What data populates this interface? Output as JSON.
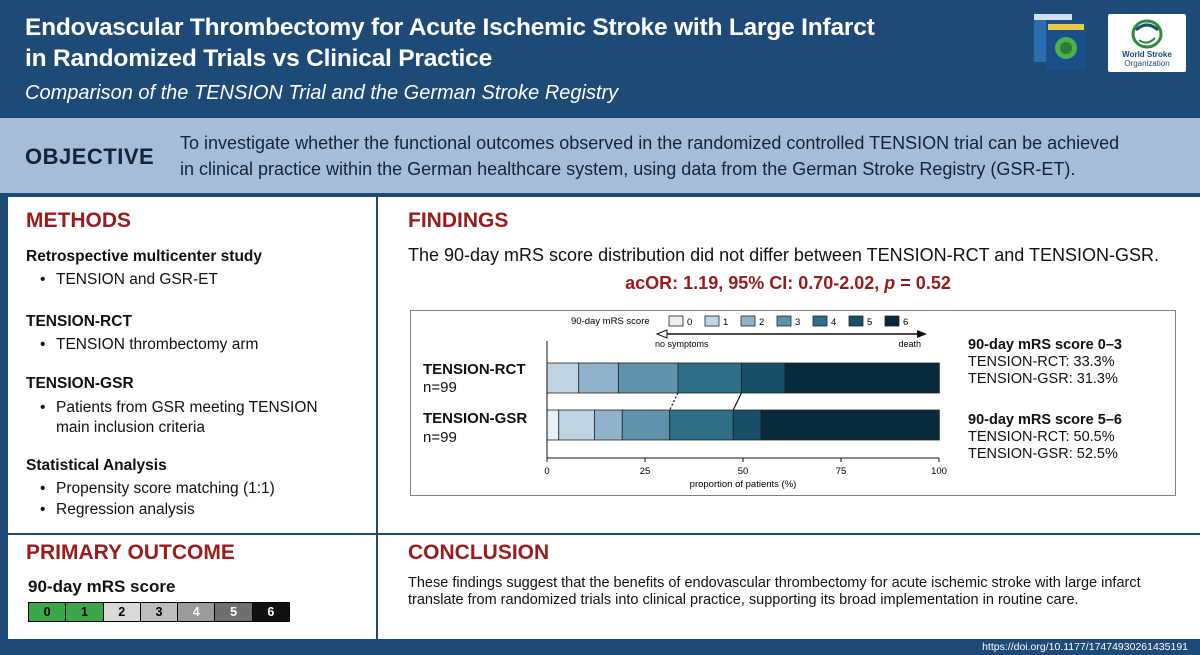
{
  "header": {
    "title_line1": "Endovascular Thrombectomy for Acute Ischemic Stroke with Large Infarct",
    "title_line2": "in Randomized Trials vs Clinical Practice",
    "subtitle": "Comparison of the TENSION Trial and the German Stroke Registry",
    "org_logo_text_1": "World Stroke",
    "org_logo_text_2": "Organization"
  },
  "objective": {
    "label": "OBJECTIVE",
    "text_line1": "To investigate whether the functional outcomes observed in the randomized controlled TENSION trial can be achieved",
    "text_line2": "in clinical practice within the German healthcare system, using data from the German Stroke Registry (GSR-ET)."
  },
  "methods": {
    "title": "METHODS",
    "groups": [
      {
        "heading": "Retrospective multicenter study",
        "items": [
          "TENSION and GSR-ET"
        ]
      },
      {
        "heading": "TENSION-RCT",
        "items": [
          "TENSION thrombectomy arm"
        ]
      },
      {
        "heading": "TENSION-GSR",
        "items": [
          "Patients from GSR meeting TENSION main inclusion criteria"
        ]
      },
      {
        "heading": "Statistical Analysis",
        "items": [
          "Propensity score matching (1:1)",
          "Regression analysis"
        ]
      }
    ]
  },
  "findings": {
    "title": "FINDINGS",
    "lead": "The 90-day mRS score distribution did not differ between TENSION-RCT and TENSION-GSR.",
    "stat_prefix": "acOR: 1.19, 95% CI: 0.70-2.02, ",
    "stat_p": "p",
    "stat_suffix": " = 0.52",
    "side_1_title": "90-day mRS score 0–3",
    "side_1_line1": "TENSION-RCT: 33.3%",
    "side_1_line2": "TENSION-GSR: 31.3%",
    "side_2_title": "90-day mRS score 5–6",
    "side_2_line1": "TENSION-RCT: 50.5%",
    "side_2_line2": "TENSION-GSR: 52.5%"
  },
  "chart_data": {
    "type": "bar",
    "orientation": "horizontal",
    "stacked": true,
    "legend_title": "90-day mRS score",
    "legend_note_left": "no symptoms",
    "legend_note_right": "death",
    "categories": [
      "0",
      "1",
      "2",
      "3",
      "4",
      "5",
      "6"
    ],
    "colors": [
      "#eaf1f6",
      "#bfd4e3",
      "#8fb3cb",
      "#5f92ad",
      "#2d6f89",
      "#164f67",
      "#072a3c"
    ],
    "series": [
      {
        "name": "TENSION-RCT",
        "n_label": "n=99",
        "values": [
          0,
          8.1,
          10.1,
          15.2,
          16.2,
          11.1,
          39.4
        ]
      },
      {
        "name": "TENSION-GSR",
        "n_label": "n=99",
        "values": [
          3.0,
          9.1,
          7.1,
          12.1,
          16.2,
          7.1,
          45.5
        ]
      }
    ],
    "xlabel": "proportion of patients (%)",
    "xticks": [
      "0",
      "25",
      "50",
      "75",
      "100"
    ],
    "xlim": [
      0,
      100
    ]
  },
  "primary": {
    "title": "PRIMARY OUTCOME",
    "subtitle": "90-day mRS score",
    "scale": [
      "0",
      "1",
      "2",
      "3",
      "4",
      "5",
      "6"
    ],
    "scale_colors": [
      "#3aa64a",
      "#3aa64a",
      "#d9d9d9",
      "#bdbdbd",
      "#9b9b9b",
      "#6f6f6f",
      "#111111"
    ],
    "scale_text_colors": [
      "#000000",
      "#000000",
      "#000000",
      "#000000",
      "#ffffff",
      "#ffffff",
      "#ffffff"
    ]
  },
  "conclusion": {
    "title": "CONCLUSION",
    "text": "These findings suggest that the benefits of endovascular thrombectomy for acute ischemic stroke with large infarct translate from randomized trials into clinical practice, supporting its broad implementation in routine care."
  },
  "footer": {
    "doi": "https://doi.org/10.1177/17474930261435191"
  }
}
